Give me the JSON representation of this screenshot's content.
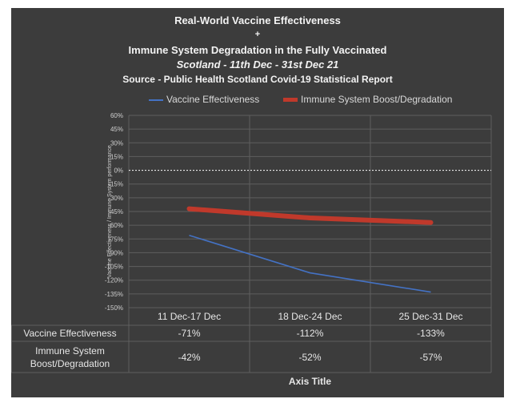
{
  "chart_data": {
    "type": "line",
    "title_lines": [
      "Real-World Vaccine Effectiveness",
      "+",
      "Immune System Degradation in the Fully Vaccinated",
      "Scotland - 11th Dec - 31st Dec 21",
      "Source - Public Health Scotland Covid-19 Statistical Report"
    ],
    "categories": [
      "11 Dec-17 Dec",
      "18 Dec-24 Dec",
      "25 Dec-31 Dec"
    ],
    "series": [
      {
        "name": "Vaccine Effectiveness",
        "values": [
          -71,
          -112,
          -133
        ],
        "labels": [
          "-71%",
          "-112%",
          "-133%"
        ],
        "color": "#4472c4"
      },
      {
        "name": "Immune System Boost/Degradation",
        "table_label": [
          "Immune System",
          "Boost/Degradation"
        ],
        "values": [
          -42,
          -52,
          -57
        ],
        "labels": [
          "-42%",
          "-52%",
          "-57%"
        ],
        "color": "#c0392b"
      }
    ],
    "ylim": [
      -150,
      60
    ],
    "yticks": [
      60,
      45,
      30,
      15,
      0,
      -15,
      -30,
      -45,
      -60,
      -75,
      -90,
      -105,
      -120,
      -135,
      -150
    ],
    "ytick_labels": [
      "60%",
      "45%",
      "30%",
      "15%",
      "0%",
      "-15%",
      "-30%",
      "-45%",
      "-60%",
      "-75%",
      "-90%",
      "-105%",
      "-120%",
      "-135%",
      "-150%"
    ],
    "ylabel": "Vaccine Effectiveness / Immune System performance",
    "xlabel": "Axis Title",
    "zero_line": "dashed white",
    "legend_position": "top",
    "grid": true,
    "data_table": true
  }
}
